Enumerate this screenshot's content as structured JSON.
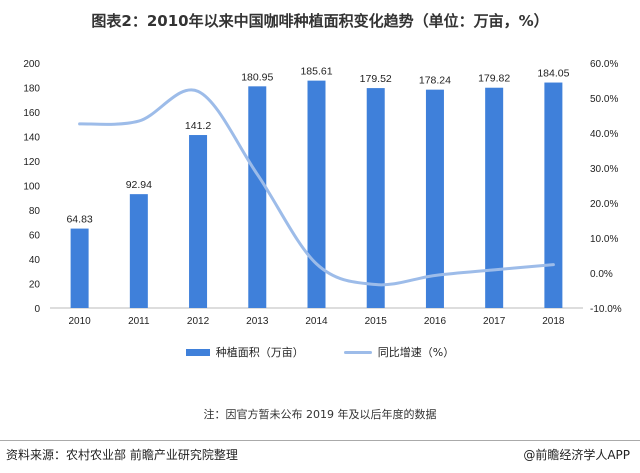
{
  "title": "图表2：2010年以来中国咖啡种植面积变化趋势（单位：万亩，%）",
  "chart_data": {
    "type": "bar+line",
    "title": "图表2：2010年以来中国咖啡种植面积变化趋势（单位：万亩，%）",
    "categories": [
      "2010",
      "2011",
      "2012",
      "2013",
      "2014",
      "2015",
      "2016",
      "2017",
      "2018"
    ],
    "series": [
      {
        "name": "种植面积（万亩）",
        "type": "bar",
        "axis": "left",
        "values": [
          64.83,
          92.94,
          141.2,
          180.95,
          185.61,
          179.52,
          178.24,
          179.82,
          184.05
        ],
        "labels": [
          "64.83",
          "92.94",
          "141.2",
          "180.95",
          "185.61",
          "179.52",
          "178.24",
          "179.82",
          "184.05"
        ],
        "color": "#3f80da"
      },
      {
        "name": "同比增速（%）",
        "type": "line",
        "axis": "right",
        "values": [
          42.6,
          43.4,
          51.9,
          28.2,
          2.6,
          -3.3,
          -0.7,
          0.9,
          2.4
        ],
        "color": "#9dbce9"
      }
    ],
    "left_axis": {
      "ylim": [
        0,
        200
      ],
      "ticks": [
        "0",
        "20",
        "40",
        "60",
        "80",
        "100",
        "120",
        "140",
        "160",
        "180",
        "200"
      ]
    },
    "right_axis": {
      "ylim": [
        -10,
        60
      ],
      "ticks": [
        "-10.0%",
        "0.0%",
        "10.0%",
        "20.0%",
        "30.0%",
        "40.0%",
        "50.0%",
        "60.0%"
      ]
    },
    "grid": false,
    "legend": "bottom"
  },
  "note": "注：因官方暂未公布 2019 年及以后年度的数据",
  "footer": {
    "source": "资料来源：农村农业部 前瞻产业研究院整理",
    "brand": "@前瞻经济学人APP"
  }
}
